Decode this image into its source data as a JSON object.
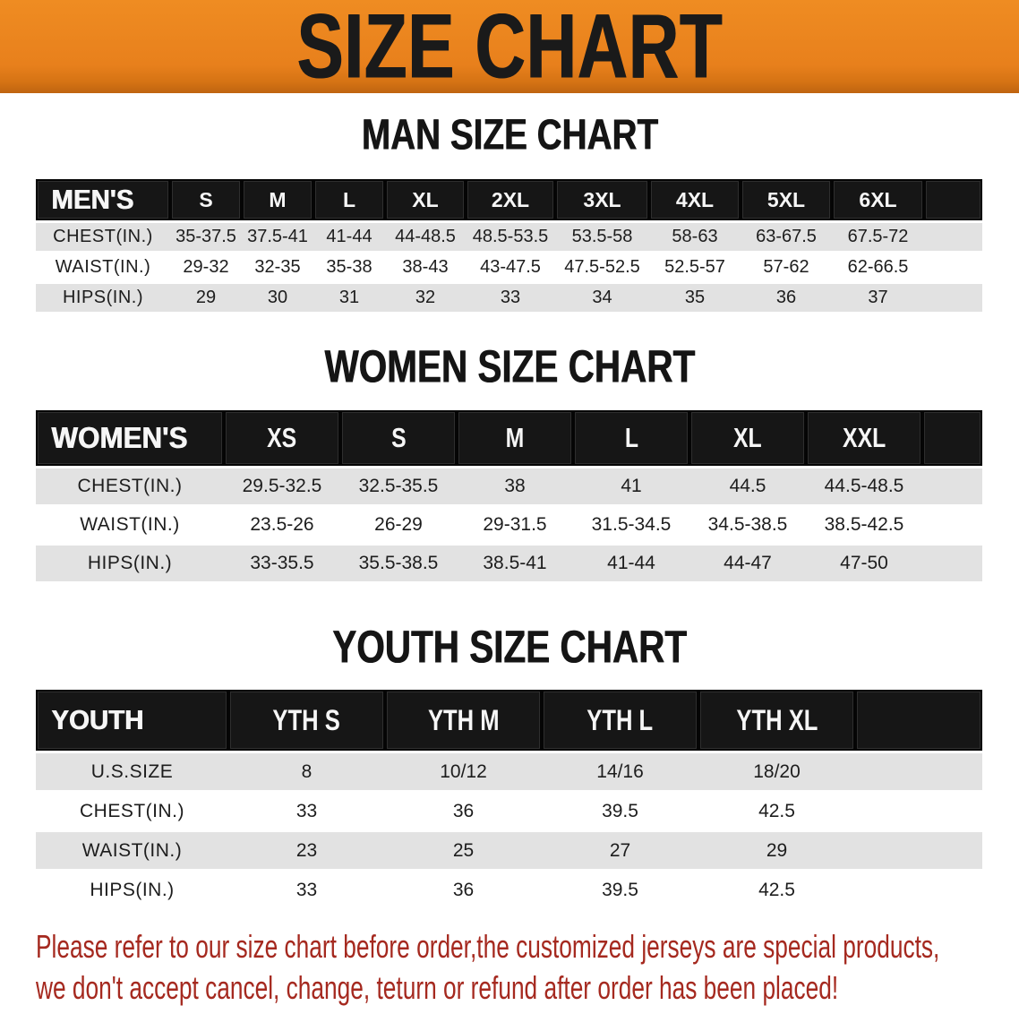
{
  "banner": {
    "title": "SIZE CHART",
    "bg_color": "#E8801C",
    "text_color": "#1A1A1A"
  },
  "sections": [
    {
      "id": "men",
      "title": "MAN SIZE CHART",
      "group_label": "MEN'S",
      "sizes": [
        "S",
        "M",
        "L",
        "XL",
        "2XL",
        "3XL",
        "4XL",
        "5XL",
        "6XL"
      ],
      "rows": [
        {
          "label": "CHEST(IN.)",
          "values": [
            "35-37.5",
            "37.5-41",
            "41-44",
            "44-48.5",
            "48.5-53.5",
            "53.5-58",
            "58-63",
            "63-67.5",
            "67.5-72"
          ]
        },
        {
          "label": "WAIST(IN.)",
          "values": [
            "29-32",
            "32-35",
            "35-38",
            "38-43",
            "43-47.5",
            "47.5-52.5",
            "52.5-57",
            "57-62",
            "62-66.5"
          ]
        },
        {
          "label": "HIPS(IN.)",
          "values": [
            "29",
            "30",
            "31",
            "32",
            "33",
            "34",
            "35",
            "36",
            "37"
          ]
        }
      ]
    },
    {
      "id": "women",
      "title": "WOMEN SIZE CHART",
      "group_label": "WOMEN'S",
      "sizes": [
        "XS",
        "S",
        "M",
        "L",
        "XL",
        "XXL"
      ],
      "rows": [
        {
          "label": "CHEST(IN.)",
          "values": [
            "29.5-32.5",
            "32.5-35.5",
            "38",
            "41",
            "44.5",
            "44.5-48.5"
          ]
        },
        {
          "label": "WAIST(IN.)",
          "values": [
            "23.5-26",
            "26-29",
            "29-31.5",
            "31.5-34.5",
            "34.5-38.5",
            "38.5-42.5"
          ]
        },
        {
          "label": "HIPS(IN.)",
          "values": [
            "33-35.5",
            "35.5-38.5",
            "38.5-41",
            "41-44",
            "44-47",
            "47-50"
          ]
        }
      ]
    },
    {
      "id": "youth",
      "title": "YOUTH SIZE CHART",
      "group_label": "YOUTH",
      "sizes": [
        "YTH S",
        "YTH M",
        "YTH L",
        "YTH XL"
      ],
      "rows": [
        {
          "label": "U.S.SIZE",
          "values": [
            "8",
            "10/12",
            "14/16",
            "18/20"
          ]
        },
        {
          "label": "CHEST(IN.)",
          "values": [
            "33",
            "36",
            "39.5",
            "42.5"
          ]
        },
        {
          "label": "WAIST(IN.)",
          "values": [
            "23",
            "25",
            "27",
            "29"
          ]
        },
        {
          "label": "HIPS(IN.)",
          "values": [
            "33",
            "36",
            "39.5",
            "42.5"
          ]
        }
      ]
    }
  ],
  "disclaimer": {
    "lines": [
      "Please refer to our size chart before order,the customized jerseys are special products,",
      "we don't accept cancel, change, teturn or refund after order has been placed!"
    ],
    "text_color": "#A5291F"
  },
  "colors": {
    "banner_orange": "#E8801C",
    "table_header_black": "#161616",
    "row_stripe_gray": "#E2E2E2",
    "row_stripe_white": "#FFFFFF",
    "disclaimer_red": "#A5291F"
  }
}
